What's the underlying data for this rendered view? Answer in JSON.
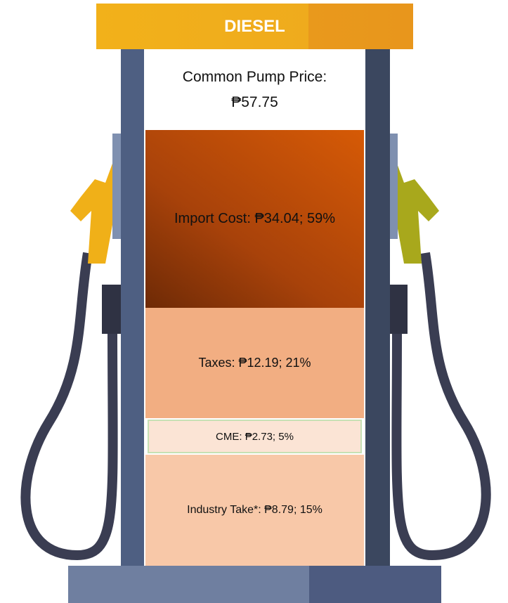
{
  "sign": "DIESEL",
  "price": {
    "label": "Common Pump Price:",
    "value": "₱57.75"
  },
  "segments": [
    {
      "label": "Import Cost: ₱34.04; 59%"
    },
    {
      "label": "Taxes: ₱12.19; 21%"
    },
    {
      "label": "CME: ₱2.73; 5%"
    },
    {
      "label": "Industry Take*: ₱8.79; 15%"
    }
  ]
}
